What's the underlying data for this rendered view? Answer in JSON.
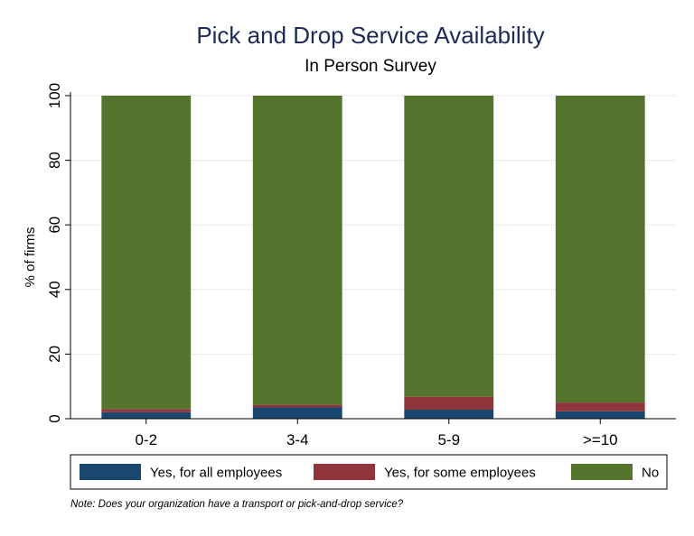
{
  "chart_data": {
    "type": "bar",
    "stacked": true,
    "title": "Pick and Drop Service Availability",
    "subtitle": "In Person Survey",
    "xlabel": "",
    "ylabel": "% of firms",
    "ylim": [
      0,
      100
    ],
    "yticks": [
      0,
      20,
      40,
      60,
      80,
      100
    ],
    "grid": true,
    "legend_position": "bottom",
    "categories": [
      "0-2",
      "3-4",
      "5-9",
      ">=10"
    ],
    "series": [
      {
        "name": "Yes, for all employees",
        "color": "#1a476f",
        "values": [
          2,
          3.5,
          2.8,
          2.3
        ]
      },
      {
        "name": "Yes, for some employees",
        "color": "#90353b",
        "values": [
          1,
          0.8,
          4,
          2.7
        ]
      },
      {
        "name": "No",
        "color": "#55752f",
        "values": [
          97,
          95.7,
          93.2,
          95
        ]
      }
    ],
    "note": "Note: Does your organization have a transport or pick-and-drop service?"
  }
}
